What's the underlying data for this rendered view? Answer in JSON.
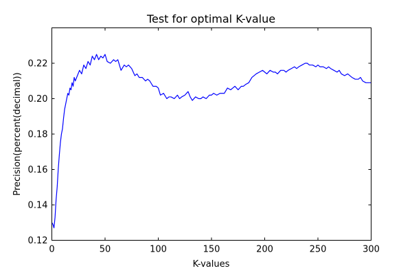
{
  "chart_data": {
    "type": "line",
    "title": "Test for optimal K-value",
    "xlabel": "K-values",
    "ylabel": "Precision(percent(decimal))",
    "xlim": [
      0,
      300
    ],
    "ylim": [
      0.12,
      0.24
    ],
    "xticks": [
      0,
      50,
      100,
      150,
      200,
      250,
      300
    ],
    "yticks": [
      0.12,
      0.14,
      0.16,
      0.18,
      0.2,
      0.22
    ],
    "ytick_labels": [
      "0.12",
      "0.14",
      "0.16",
      "0.18",
      "0.20",
      "0.22"
    ],
    "grid": false,
    "series": [
      {
        "name": "precision",
        "color": "#0000ff",
        "x": [
          0,
          1,
          2,
          3,
          4,
          5,
          6,
          7,
          8,
          9,
          10,
          11,
          12,
          13,
          14,
          15,
          16,
          17,
          18,
          19,
          20,
          21,
          22,
          24,
          26,
          28,
          30,
          32,
          34,
          36,
          38,
          40,
          42,
          44,
          46,
          48,
          50,
          52,
          55,
          58,
          60,
          62,
          65,
          68,
          70,
          72,
          75,
          78,
          80,
          82,
          85,
          88,
          90,
          92,
          95,
          98,
          100,
          102,
          105,
          108,
          110,
          112,
          115,
          118,
          120,
          122,
          125,
          128,
          130,
          132,
          135,
          138,
          140,
          142,
          145,
          148,
          150,
          152,
          155,
          158,
          160,
          162,
          165,
          168,
          170,
          172,
          175,
          178,
          180,
          182,
          185,
          188,
          190,
          192,
          195,
          198,
          200,
          202,
          205,
          208,
          210,
          212,
          215,
          218,
          220,
          222,
          225,
          228,
          230,
          232,
          235,
          238,
          240,
          242,
          245,
          248,
          250,
          252,
          255,
          258,
          260,
          262,
          265,
          268,
          270,
          272,
          275,
          278,
          280,
          282,
          285,
          288,
          290,
          292,
          295,
          298,
          300
        ],
        "y": [
          0.13,
          0.129,
          0.127,
          0.133,
          0.143,
          0.15,
          0.16,
          0.168,
          0.175,
          0.18,
          0.183,
          0.189,
          0.194,
          0.197,
          0.2,
          0.203,
          0.202,
          0.206,
          0.205,
          0.209,
          0.207,
          0.212,
          0.21,
          0.213,
          0.216,
          0.214,
          0.219,
          0.217,
          0.221,
          0.219,
          0.224,
          0.222,
          0.225,
          0.222,
          0.224,
          0.223,
          0.225,
          0.221,
          0.22,
          0.222,
          0.221,
          0.222,
          0.216,
          0.219,
          0.218,
          0.219,
          0.217,
          0.213,
          0.214,
          0.212,
          0.212,
          0.21,
          0.211,
          0.21,
          0.207,
          0.207,
          0.206,
          0.202,
          0.203,
          0.2,
          0.201,
          0.201,
          0.2,
          0.202,
          0.2,
          0.201,
          0.202,
          0.204,
          0.201,
          0.199,
          0.201,
          0.2,
          0.2,
          0.201,
          0.2,
          0.202,
          0.202,
          0.203,
          0.202,
          0.203,
          0.203,
          0.203,
          0.206,
          0.205,
          0.206,
          0.207,
          0.205,
          0.207,
          0.207,
          0.208,
          0.209,
          0.212,
          0.213,
          0.214,
          0.215,
          0.216,
          0.215,
          0.214,
          0.216,
          0.215,
          0.215,
          0.214,
          0.216,
          0.216,
          0.215,
          0.216,
          0.217,
          0.218,
          0.217,
          0.218,
          0.219,
          0.22,
          0.22,
          0.219,
          0.219,
          0.218,
          0.219,
          0.218,
          0.218,
          0.217,
          0.218,
          0.217,
          0.216,
          0.215,
          0.216,
          0.214,
          0.213,
          0.214,
          0.213,
          0.212,
          0.211,
          0.211,
          0.212,
          0.21,
          0.209,
          0.209,
          0.209
        ]
      }
    ]
  }
}
